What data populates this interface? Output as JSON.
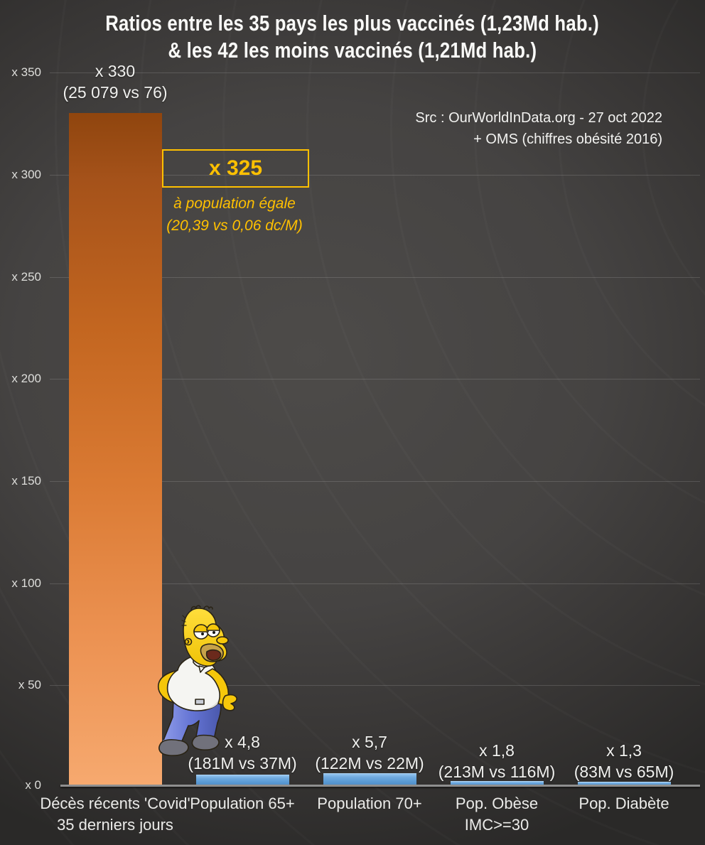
{
  "title": {
    "line1": "Ratios entre les 35 pays les plus vaccinés (1,23Md hab.)",
    "line2": "& les 42 les moins vaccinés (1,21Md hab.)"
  },
  "source": {
    "line1": "Src : OurWorldInData.org - 27 oct 2022",
    "line2": "+ OMS (chiffres obésité 2016)"
  },
  "y_axis": {
    "ticks": [
      "x 350",
      "x 300",
      "x 250",
      "x 200",
      "x 150",
      "x 100",
      "x 50",
      "x 0"
    ]
  },
  "annotation": {
    "value": "x 325",
    "note_line1": "à population égale",
    "note_line2": "(20,39 vs 0,06 dc/M)"
  },
  "bars": [
    {
      "value_label": "x 330",
      "detail": "(25 079 vs 76)",
      "category_line1": "Décès récents 'Covid'",
      "category_line2": "35 derniers jours"
    },
    {
      "value_label": "x 4,8",
      "detail": "(181M vs 37M)",
      "category_line1": "Population 65+",
      "category_line2": ""
    },
    {
      "value_label": "x 5,7",
      "detail": "(122M vs 22M)",
      "category_line1": "Population 70+",
      "category_line2": ""
    },
    {
      "value_label": "x 1,8",
      "detail": "(213M vs 116M)",
      "category_line1": "Pop. Obèse",
      "category_line2": "IMC>=30"
    },
    {
      "value_label": "x 1,3",
      "detail": "(83M vs 65M)",
      "category_line1": "Pop. Diabète",
      "category_line2": ""
    }
  ],
  "illustration": "homer-simpson",
  "colors": {
    "background_center": "#4C4A48",
    "background_edge": "#2A2928",
    "bar_orange_top": "#8F450E",
    "bar_orange_bottom": "#F6A96F",
    "bar_blue": "#5B9BD5",
    "accent_gold": "#FFC000",
    "text": "#EDEDEB",
    "axis_line": "#8F8F8F"
  },
  "chart_data": {
    "type": "bar",
    "title": "Ratios entre les 35 pays les plus vaccinés (1,23Md hab.) & les 42 les moins vaccinés (1,21Md hab.)",
    "categories": [
      "Décès récents 'Covid' 35 derniers jours",
      "Population 65+",
      "Population 70+",
      "Pop. Obèse IMC>=30",
      "Pop. Diabète"
    ],
    "values": [
      330,
      4.8,
      5.7,
      1.8,
      1.3
    ],
    "value_labels": [
      "x 330",
      "x 4,8",
      "x 5,7",
      "x 1,8",
      "x 1,3"
    ],
    "detail_labels": [
      "(25 079 vs 76)",
      "(181M vs 37M)",
      "(122M vs 22M)",
      "(213M vs 116M)",
      "(83M vs 65M)"
    ],
    "bar_colors": [
      "#C96A22",
      "#5B9BD5",
      "#5B9BD5",
      "#5B9BD5",
      "#5B9BD5"
    ],
    "ylim": [
      0,
      350
    ],
    "ytick_step": 50,
    "ytick_prefix": "x ",
    "grid": true,
    "legend": false,
    "annotation": {
      "text": "x 325",
      "subtext": "à population égale (20,39 vs 0,06 dc/M)",
      "applies_to": "Décès récents 'Covid' 35 derniers jours"
    },
    "source": "Src : OurWorldInData.org - 27 oct 2022 + OMS (chiffres obésité 2016)"
  }
}
